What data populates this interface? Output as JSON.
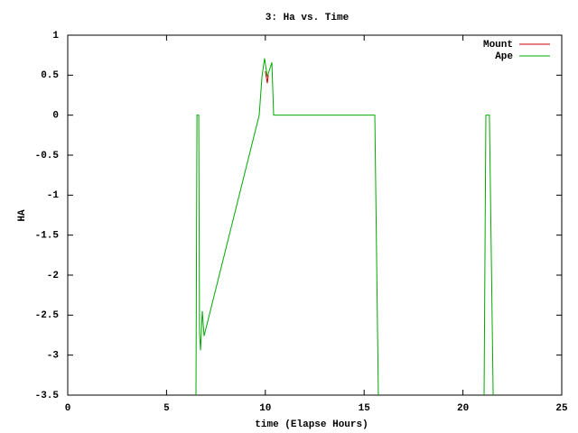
{
  "chart_data": {
    "type": "line",
    "title": "3: Ha vs. Time",
    "x_label": "time (Elapse Hours)",
    "y_label": "HA",
    "xlim": [
      0,
      25
    ],
    "xticks": [
      0,
      5,
      10,
      15,
      20,
      25
    ],
    "ylim": [
      -3.5,
      1
    ],
    "yticks": [
      1,
      0.5,
      0,
      -0.5,
      -1,
      -1.5,
      -2,
      -2.5,
      -3,
      -3.5
    ],
    "legend": "upper-right",
    "series": [
      {
        "name": "Mount",
        "color": "#cc0000",
        "x": [
          10.0,
          10.1,
          10.15
        ],
        "values": [
          0.55,
          0.4,
          0.5
        ]
      },
      {
        "name": "Ape",
        "color": "#00aa00",
        "x": [
          6.49,
          6.54,
          6.63,
          6.67,
          6.72,
          6.81,
          6.9,
          9.69,
          9.83,
          9.96,
          10.1,
          10.33,
          10.42,
          15.54,
          15.72,
          null,
          21.07,
          21.16,
          21.34,
          21.53
        ],
        "values": [
          -3.5,
          0,
          0,
          -2.73,
          -2.94,
          -2.45,
          -2.76,
          0,
          0.48,
          0.71,
          0.48,
          0.66,
          0,
          0,
          -3.5,
          null,
          -3.5,
          0,
          0,
          -3.5
        ]
      }
    ]
  }
}
